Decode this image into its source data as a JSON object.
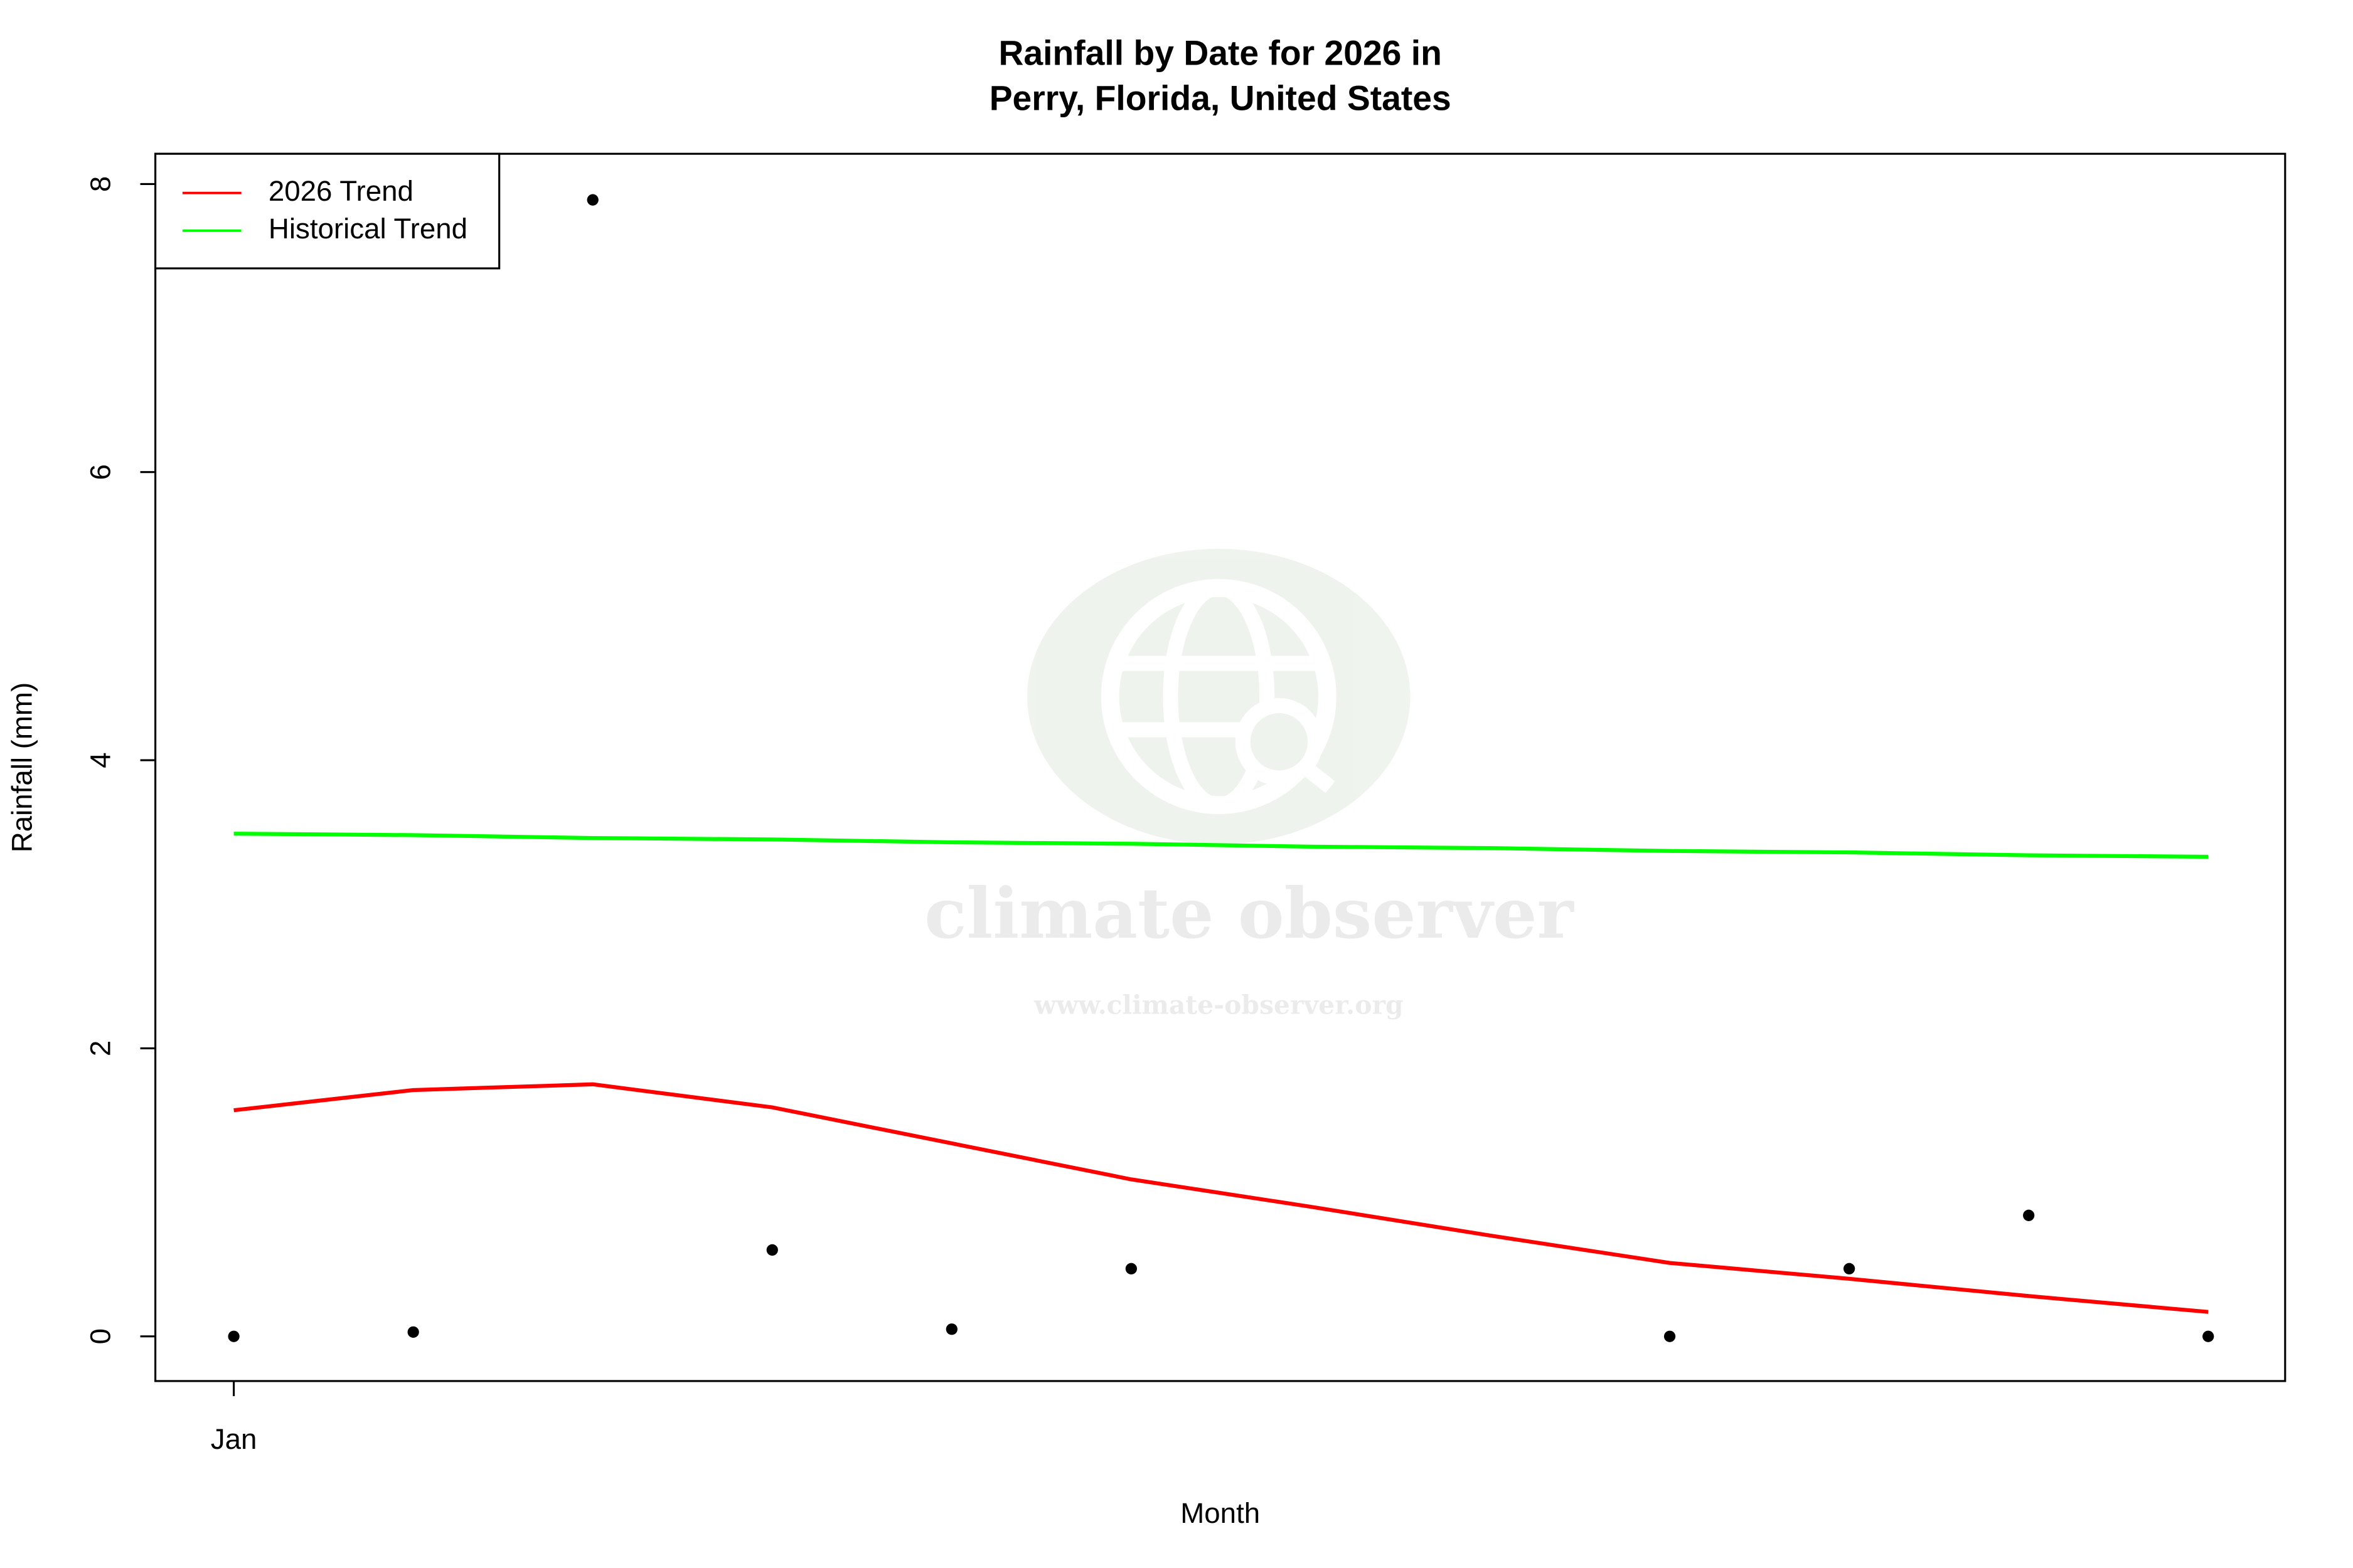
{
  "chart_data": {
    "type": "scatter",
    "title": [
      "Rainfall by Date for 2026 in",
      "Perry, Florida, United States"
    ],
    "x_label": "Month",
    "y_label": "Rainfall (mm)",
    "categories": [
      "Jan",
      null,
      null,
      null,
      null,
      null,
      null,
      null,
      null,
      null,
      null,
      null
    ],
    "points": {
      "color": "#000000",
      "values": [
        0,
        0.03,
        7.89,
        0.6,
        0.05,
        0.47,
        null,
        null,
        0,
        0.47,
        0.84,
        0
      ]
    },
    "series": [
      {
        "name": "2026 Trend",
        "color": "#ff0000",
        "values": [
          1.57,
          1.71,
          1.75,
          1.59,
          1.34,
          1.09,
          0.9,
          0.7,
          0.51,
          0.4,
          0.28,
          0.17
        ]
      },
      {
        "name": "Historical Trend",
        "color": "#00ff00",
        "values": [
          3.49,
          3.48,
          3.46,
          3.45,
          3.43,
          3.42,
          3.4,
          3.39,
          3.37,
          3.36,
          3.34,
          3.33
        ]
      }
    ],
    "ylim": [
      -0.31,
      8.21
    ],
    "yticks": [
      0,
      2,
      4,
      6,
      8
    ],
    "legend": "top-left",
    "watermark": {
      "name": "climate observer",
      "url": "www.climate-observer.org"
    }
  }
}
